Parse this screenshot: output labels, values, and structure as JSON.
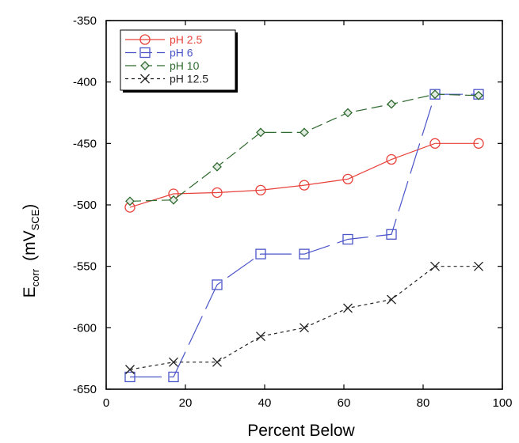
{
  "chart_data": {
    "type": "line",
    "title": "",
    "xlabel": "Percent Below",
    "ylabel": {
      "main": "E",
      "main_sub": "corr",
      "unit_open": "(mV",
      "unit_sub": "SCE",
      "unit_close": ")"
    },
    "xlim": [
      0,
      100
    ],
    "ylim": [
      -650,
      -350
    ],
    "x_ticks": [
      0,
      20,
      40,
      60,
      80,
      100
    ],
    "y_ticks": [
      -350,
      -400,
      -450,
      -500,
      -550,
      -600,
      -650
    ],
    "x_tick_labels": [
      "0",
      "20",
      "40",
      "60",
      "80",
      "100"
    ],
    "y_tick_labels": [
      "-350",
      "-400",
      "-450",
      "-500",
      "-550",
      "-600",
      "-650"
    ],
    "grid": false,
    "legend_position": "top-left",
    "series": [
      {
        "name": "pH 2.5",
        "color": "#e8413a",
        "marker": "circle",
        "dash": "solid",
        "points": [
          [
            6,
            -502
          ],
          [
            17,
            -491
          ],
          [
            28,
            -490
          ],
          [
            39,
            -488
          ],
          [
            50,
            -484
          ],
          [
            61,
            -479
          ],
          [
            72,
            -463
          ],
          [
            83,
            -450
          ],
          [
            94,
            -450
          ]
        ]
      },
      {
        "name": "pH 6",
        "color": "#4a55c8",
        "marker": "square",
        "dash": "long-dash",
        "points": [
          [
            6,
            -640
          ],
          [
            17,
            -640
          ],
          [
            28,
            -565
          ],
          [
            39,
            -540
          ],
          [
            50,
            -540
          ],
          [
            61,
            -528
          ],
          [
            72,
            -524
          ],
          [
            83,
            -410
          ],
          [
            94,
            -410
          ]
        ]
      },
      {
        "name": "pH 10",
        "color": "#2f6a2f",
        "marker": "diamond",
        "dash": "dash",
        "points": [
          [
            6,
            -497
          ],
          [
            17,
            -496
          ],
          [
            28,
            -469
          ],
          [
            39,
            -441
          ],
          [
            50,
            -441
          ],
          [
            61,
            -425
          ],
          [
            72,
            -418
          ],
          [
            83,
            -410
          ],
          [
            94,
            -411
          ]
        ]
      },
      {
        "name": "pH 12.5",
        "color": "#222222",
        "marker": "x",
        "dash": "short-dash",
        "points": [
          [
            6,
            -634
          ],
          [
            17,
            -628
          ],
          [
            28,
            -628
          ],
          [
            39,
            -607
          ],
          [
            50,
            -600
          ],
          [
            61,
            -584
          ],
          [
            72,
            -577
          ],
          [
            83,
            -550
          ],
          [
            94,
            -550
          ]
        ]
      }
    ]
  }
}
